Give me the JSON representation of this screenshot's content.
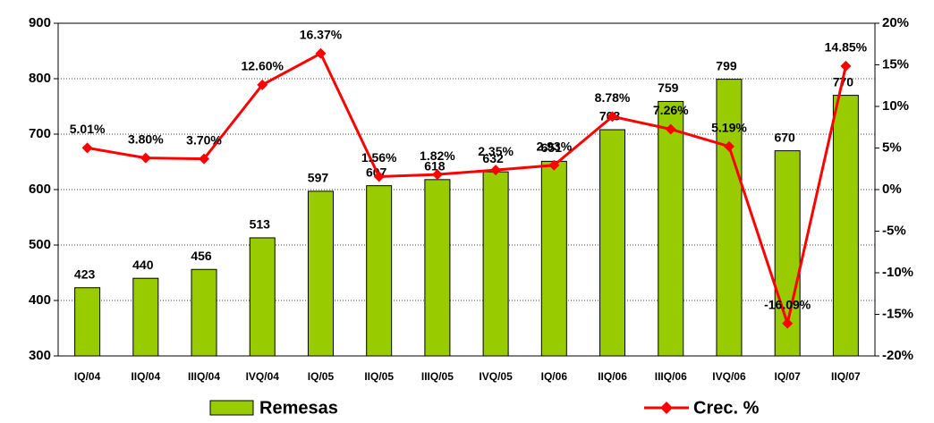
{
  "chart_data": {
    "type": "combo",
    "categories": [
      "IQ/04",
      "IIQ/04",
      "IIIQ/04",
      "IVQ/04",
      "IQ/05",
      "IIQ/05",
      "IIIQ/05",
      "IVQ/05",
      "IQ/06",
      "IIQ/06",
      "IIIQ/06",
      "IVQ/06",
      "IQ/07",
      "IIQ/07"
    ],
    "series": [
      {
        "name": "Remesas",
        "type": "bar",
        "color": "#99cc00",
        "values": [
          423,
          440,
          456,
          513,
          597,
          607,
          618,
          632,
          651,
          708,
          759,
          799,
          670,
          770
        ]
      },
      {
        "name": "Crec. %",
        "type": "line",
        "axis": "y2",
        "color": "#ff0000",
        "values": [
          5.01,
          3.8,
          3.7,
          12.6,
          16.37,
          1.56,
          1.82,
          2.35,
          2.93,
          8.78,
          7.26,
          5.19,
          -16.09,
          14.85
        ],
        "value_labels": [
          "5.01%",
          "3.80%",
          "3.70%",
          "12.60%",
          "16.37%",
          "1.56%",
          "1.82%",
          "2.35%",
          "2.93%",
          "8.78%",
          "7.26%",
          "5.19%",
          "-16.09%",
          "14.85%"
        ]
      }
    ],
    "ylim": [
      300,
      900
    ],
    "yticks": [
      300,
      400,
      500,
      600,
      700,
      800,
      900
    ],
    "y2lim": [
      -20,
      20
    ],
    "y2ticks": [
      {
        "value": -20,
        "label": "-20%"
      },
      {
        "value": -15,
        "label": "-15%"
      },
      {
        "value": -10,
        "label": "-10%"
      },
      {
        "value": -5,
        "label": "-5%"
      },
      {
        "value": 0,
        "label": "0%"
      },
      {
        "value": 5,
        "label": "5%"
      },
      {
        "value": 10,
        "label": "10%"
      },
      {
        "value": 15,
        "label": "15%"
      },
      {
        "value": 20,
        "label": "20%"
      }
    ],
    "grid": true
  }
}
